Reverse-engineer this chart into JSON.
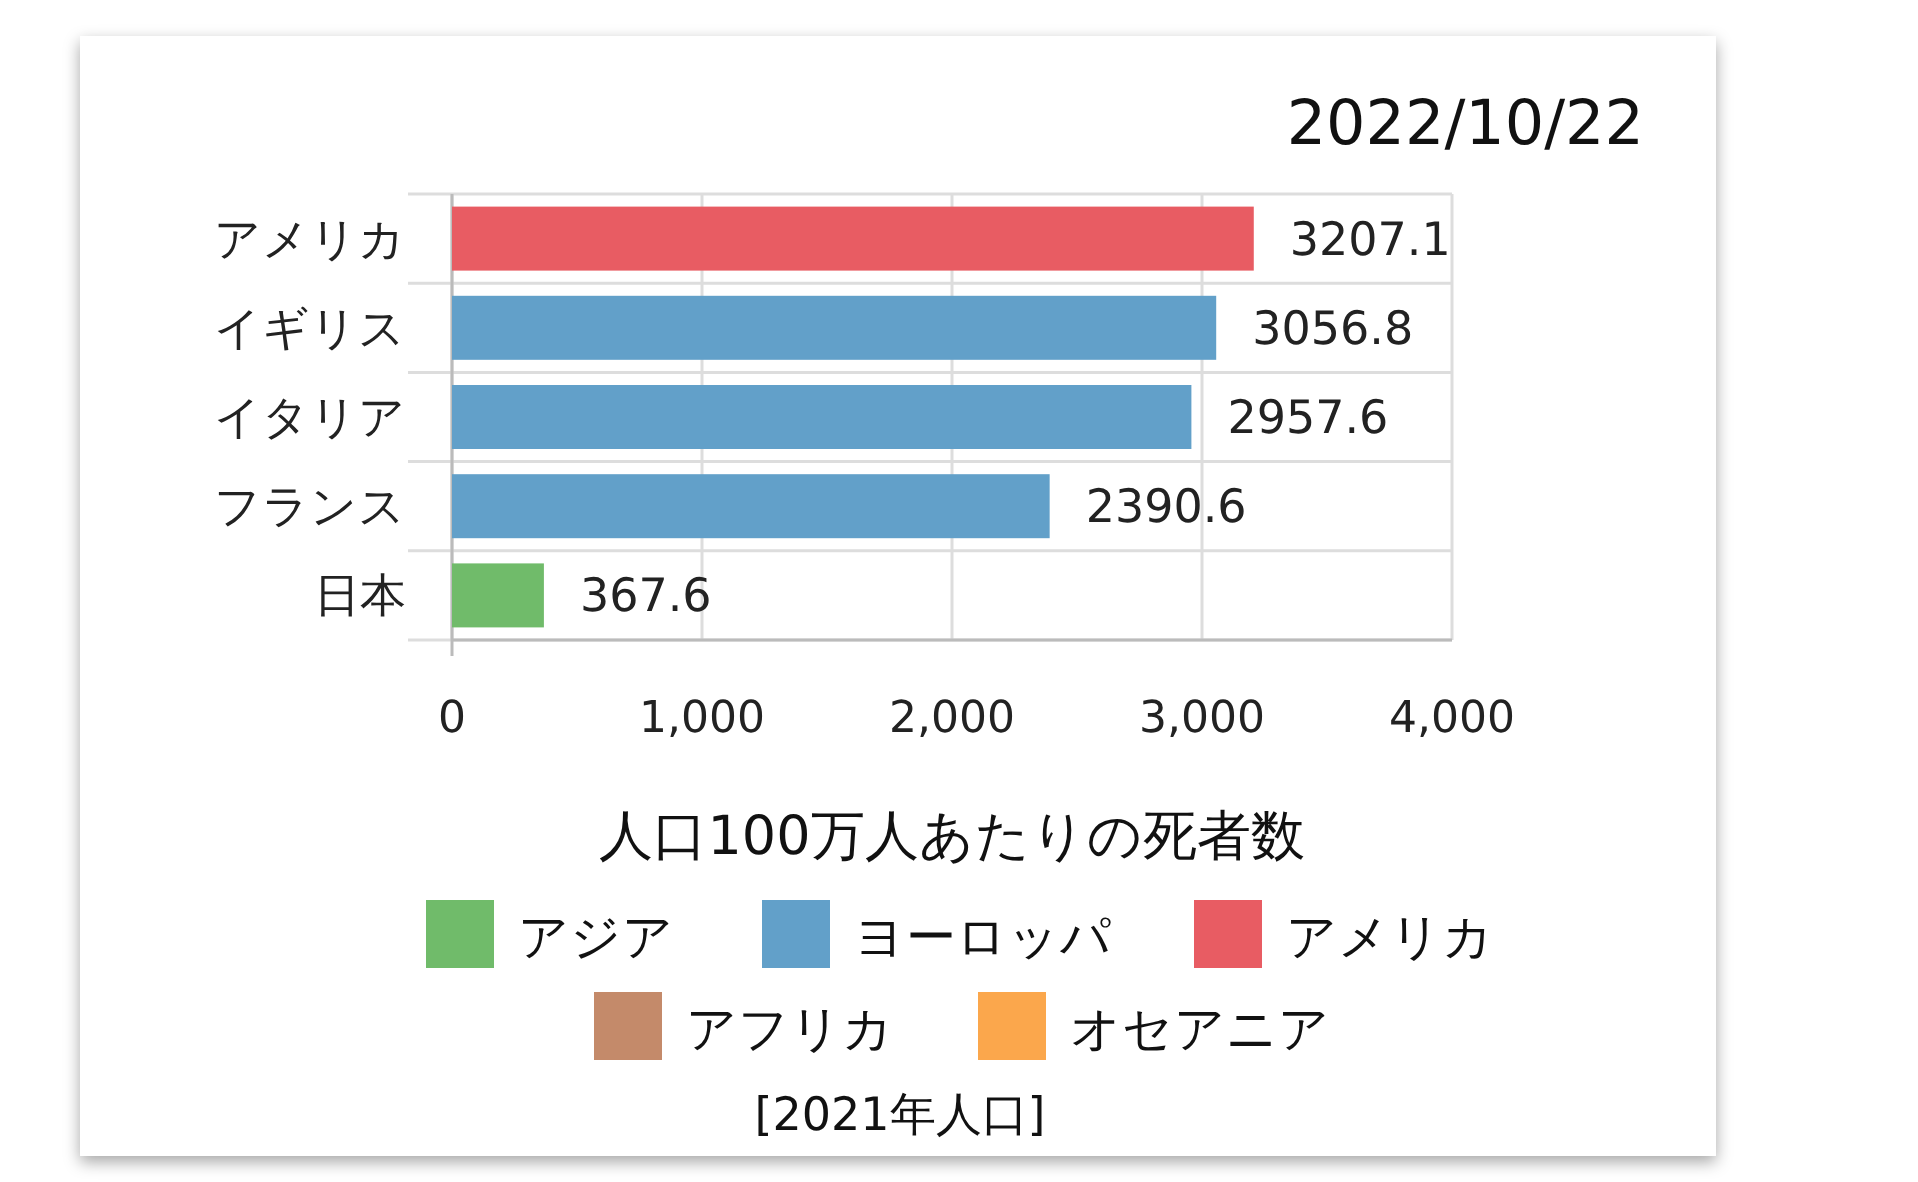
{
  "chart_data": {
    "type": "bar",
    "orientation": "horizontal",
    "title": "2022/10/22",
    "xlabel": "人口100万人あたりの死者数",
    "categories": [
      "アメリカ",
      "イギリス",
      "イタリア",
      "フランス",
      "日本"
    ],
    "series": [
      {
        "name": "アジア",
        "color": "#70bb6a",
        "values": [
          null,
          null,
          null,
          null,
          367.6
        ]
      },
      {
        "name": "ヨーロッパ",
        "color": "#62a0c9",
        "values": [
          null,
          3056.8,
          2957.6,
          2390.6,
          null
        ]
      },
      {
        "name": "アメリカ",
        "color": "#e85c63",
        "values": [
          3207.1,
          null,
          null,
          null,
          null
        ]
      },
      {
        "name": "アフリカ",
        "color": "#c48a6a",
        "values": [
          null,
          null,
          null,
          null,
          null
        ]
      },
      {
        "name": "オセアニア",
        "color": "#fba74c",
        "values": [
          null,
          null,
          null,
          null,
          null
        ]
      }
    ],
    "xlim": [
      0,
      4000
    ],
    "xticks": [
      {
        "value": 0,
        "label": "0"
      },
      {
        "value": 1000,
        "label": "1,000"
      },
      {
        "value": 2000,
        "label": "2,000"
      },
      {
        "value": 3000,
        "label": "3,000"
      },
      {
        "value": 4000,
        "label": "4,000"
      }
    ],
    "data_labels": true,
    "grid": true,
    "legend": "bottom",
    "annotations": [
      "[2021年人口]"
    ]
  }
}
